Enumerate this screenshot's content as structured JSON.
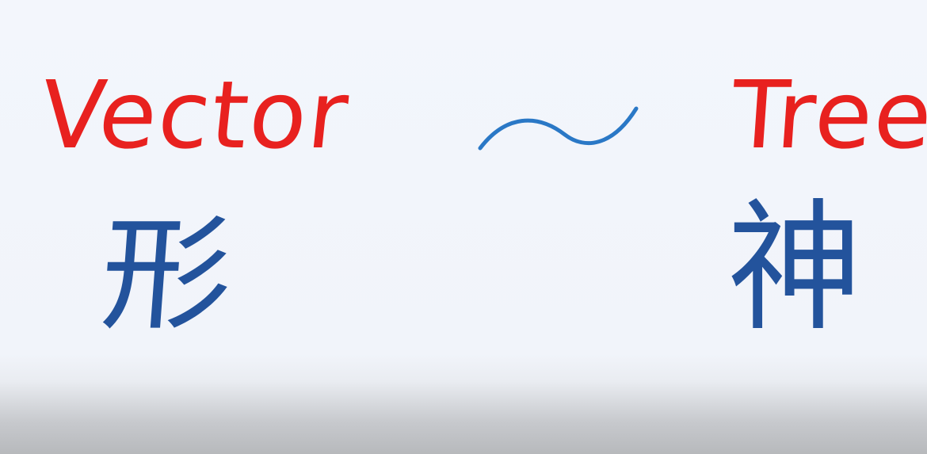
{
  "words": {
    "left": "Vector",
    "right": "Tree",
    "color": "#e8211f"
  },
  "connector": {
    "symbol": "tilde",
    "color": "#2a78c6"
  },
  "glyphs": {
    "left": "形",
    "right": "神",
    "color": "#23539c"
  },
  "background": "#f2f5fb"
}
